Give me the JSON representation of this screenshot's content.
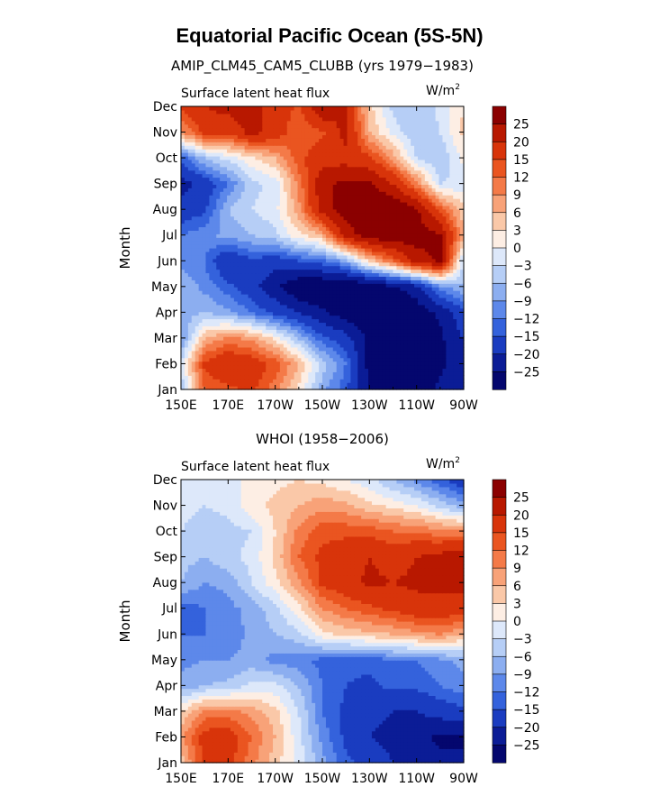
{
  "figure": {
    "title": "Equatorial Pacific Ocean (5S-5N)"
  },
  "colorbar": {
    "levels": [
      "25",
      "20",
      "15",
      "12",
      "9",
      "6",
      "3",
      "0",
      "−3",
      "−6",
      "−9",
      "−12",
      "−15",
      "−20",
      "−25"
    ],
    "colors": [
      "#8b0000",
      "#b81800",
      "#d8340a",
      "#ea5520",
      "#f47a48",
      "#f8a278",
      "#fac8a8",
      "#fdeee4",
      "#dde8fa",
      "#b6cef6",
      "#8caef0",
      "#5d88ea",
      "#3462dc",
      "#1a3cc0",
      "#0b1c96",
      "#04076e"
    ]
  },
  "chart_data": [
    {
      "type": "heatmap",
      "title": "AMIP_CLM45_CAM5_CLUBB (yrs 1979−1983)",
      "subtitle": "Surface latent heat flux",
      "units": "W/m",
      "units_sup": "2",
      "ylabel": "Month",
      "x_ticks": [
        "150E",
        "170E",
        "170W",
        "150W",
        "130W",
        "110W",
        "90W"
      ],
      "y_ticks": [
        "Jan",
        "Feb",
        "Mar",
        "Apr",
        "May",
        "Jun",
        "Jul",
        "Aug",
        "Sep",
        "Oct",
        "Nov",
        "Dec"
      ],
      "x_lon": [
        150,
        160,
        170,
        180,
        190,
        200,
        210,
        220,
        230,
        240,
        250,
        260,
        270
      ],
      "values": [
        [
          -6,
          12,
          14,
          16,
          10,
          2,
          -8,
          -14,
          -26,
          -26,
          -28,
          -24,
          -20
        ],
        [
          -2,
          16,
          20,
          18,
          14,
          6,
          -4,
          -12,
          -27,
          -28,
          -29,
          -26,
          -22
        ],
        [
          -10,
          6,
          10,
          8,
          2,
          -6,
          -14,
          -18,
          -26,
          -30,
          -30,
          -26,
          -20
        ],
        [
          -8,
          -6,
          -8,
          -12,
          -16,
          -20,
          -24,
          -28,
          -30,
          -30,
          -28,
          -24,
          -16
        ],
        [
          -6,
          -10,
          -14,
          -18,
          -24,
          -30,
          -31,
          -31,
          -30,
          -26,
          -22,
          -10,
          -6
        ],
        [
          -10,
          -12,
          -20,
          -16,
          -18,
          -15,
          -13,
          -8,
          4,
          12,
          22,
          26,
          -4
        ],
        [
          -12,
          -10,
          -8,
          -6,
          -4,
          2,
          6,
          22,
          28,
          29,
          28,
          26,
          6
        ],
        [
          -18,
          -16,
          -6,
          -3,
          -1,
          8,
          22,
          28,
          30,
          30,
          26,
          14,
          4
        ],
        [
          -22,
          -18,
          -12,
          -4,
          -2,
          10,
          24,
          26,
          26,
          20,
          10,
          -3,
          -2
        ],
        [
          -14,
          -6,
          -2,
          2,
          6,
          14,
          18,
          18,
          16,
          8,
          -3,
          -6,
          1
        ],
        [
          8,
          16,
          16,
          22,
          18,
          12,
          14,
          22,
          6,
          -1,
          -6,
          -3,
          4
        ],
        [
          16,
          20,
          22,
          22,
          18,
          14,
          26,
          20,
          4,
          -4,
          -6,
          -2,
          3
        ]
      ]
    },
    {
      "type": "heatmap",
      "title": "WHOI (1958−2006)",
      "subtitle": "Surface latent heat flux",
      "units": "W/m",
      "units_sup": "2",
      "ylabel": "Month",
      "x_ticks": [
        "150E",
        "170E",
        "170W",
        "150W",
        "130W",
        "110W",
        "90W"
      ],
      "y_ticks": [
        "Jan",
        "Feb",
        "Mar",
        "Apr",
        "May",
        "Jun",
        "Jul",
        "Aug",
        "Sep",
        "Oct",
        "Nov",
        "Dec"
      ],
      "x_lon": [
        150,
        160,
        170,
        180,
        190,
        200,
        210,
        220,
        230,
        240,
        250,
        260,
        270
      ],
      "values": [
        [
          4,
          16,
          16,
          10,
          4,
          -1,
          -8,
          -14,
          -16,
          -20,
          -22,
          -24,
          -24
        ],
        [
          8,
          17,
          18,
          12,
          6,
          -2,
          -10,
          -16,
          -20,
          -22,
          -24,
          -26,
          -26
        ],
        [
          3,
          10,
          10,
          8,
          4,
          -3,
          -12,
          -16,
          -18,
          -20,
          -20,
          -18,
          -16
        ],
        [
          -8,
          -6,
          -5,
          -2,
          -2,
          -6,
          -12,
          -15,
          -16,
          -14,
          -14,
          -12,
          -10
        ],
        [
          -10,
          -9,
          -9,
          -8,
          -10,
          -11,
          -13,
          -14,
          -14,
          -12,
          -12,
          -10,
          -8
        ],
        [
          -12,
          -12,
          -11,
          -8,
          -6,
          -4,
          2,
          4,
          5,
          6,
          8,
          9,
          6
        ],
        [
          -14,
          -12,
          -10,
          -8,
          -4,
          2,
          9,
          12,
          14,
          16,
          18,
          18,
          18
        ],
        [
          -6,
          -9,
          -8,
          -3,
          2,
          8,
          16,
          18,
          21,
          20,
          21,
          21,
          21
        ],
        [
          -5,
          -6,
          -4,
          -2,
          4,
          12,
          16,
          18,
          20,
          18,
          20,
          22,
          24
        ],
        [
          -3,
          -5,
          -4,
          -3,
          3,
          10,
          14,
          14,
          14,
          12,
          12,
          10,
          10
        ],
        [
          -2,
          -3,
          -2,
          2,
          4,
          6,
          8,
          7,
          4,
          2,
          0,
          -4,
          -8
        ],
        [
          -1,
          -2,
          -1,
          1,
          2,
          3,
          2,
          0,
          -2,
          -6,
          -10,
          -14,
          -18
        ]
      ]
    }
  ]
}
